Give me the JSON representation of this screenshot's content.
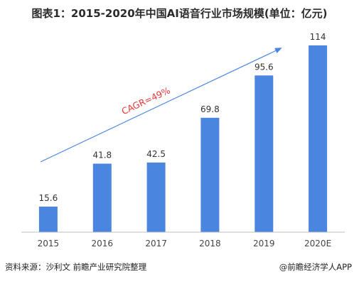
{
  "chart_data": {
    "type": "bar",
    "title": "图表1：2015-2020年中国AI语音行业市场规模(单位：亿元)",
    "categories": [
      "2015",
      "2016",
      "2017",
      "2018",
      "2019",
      "2020E"
    ],
    "values": [
      15.6,
      41.8,
      42.5,
      69.8,
      95.6,
      114
    ],
    "data_labels": [
      "15.6",
      "41.8",
      "42.5",
      "69.8",
      "95.6",
      "114"
    ],
    "ylim": [
      0,
      120
    ],
    "grid": false,
    "legend": "none",
    "annotation": "CAGR=49%",
    "colors": {
      "bar": "#4a86e0",
      "arrow": "#4a86e0",
      "annotation": "#e8383a",
      "axis": "#bfbfbf"
    }
  },
  "footer": {
    "source": "资料来源：沙利文 前瞻产业研究院整理",
    "brand": "@前瞻经济学人APP"
  }
}
